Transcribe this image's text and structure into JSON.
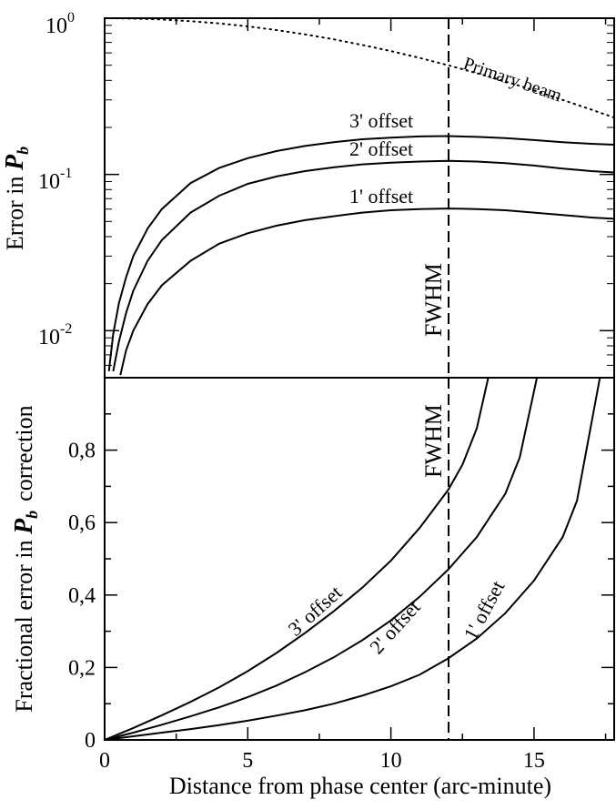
{
  "chart_data": [
    {
      "type": "line",
      "panel": "top",
      "ylabel_text": "Error in ",
      "ylabel_symbol": "P",
      "ylabel_subscript": "b",
      "yscale": "log",
      "ylim": [
        0.005,
        1
      ],
      "xlim": [
        0,
        17.8
      ],
      "ytick_labels": [
        {
          "base": "10",
          "exp": "0",
          "value": 1
        },
        {
          "base": "10",
          "exp": "-1",
          "value": 0.1
        },
        {
          "base": "10",
          "exp": "-2",
          "value": 0.01
        }
      ],
      "series": [
        {
          "name": "3' offset",
          "style": "solid",
          "x": [
            0.15,
            0.3,
            0.5,
            0.75,
            1,
            1.5,
            2,
            3,
            4,
            5,
            6,
            7,
            8,
            9,
            10,
            11,
            12,
            13,
            14,
            15,
            16,
            17,
            17.8
          ],
          "y": [
            0.0055,
            0.0095,
            0.015,
            0.022,
            0.03,
            0.045,
            0.06,
            0.088,
            0.11,
            0.127,
            0.141,
            0.152,
            0.161,
            0.168,
            0.172,
            0.175,
            0.176,
            0.174,
            0.171,
            0.166,
            0.161,
            0.157,
            0.155
          ]
        },
        {
          "name": "2' offset",
          "style": "solid",
          "x": [
            0.3,
            0.5,
            0.75,
            1,
            1.5,
            2,
            3,
            4,
            5,
            6,
            7,
            8,
            9,
            10,
            11,
            12,
            13,
            14,
            15,
            16,
            17,
            17.8
          ],
          "y": [
            0.0055,
            0.0085,
            0.013,
            0.018,
            0.028,
            0.038,
            0.057,
            0.073,
            0.087,
            0.097,
            0.105,
            0.111,
            0.116,
            0.119,
            0.121,
            0.122,
            0.121,
            0.118,
            0.114,
            0.109,
            0.105,
            0.103
          ]
        },
        {
          "name": "1' offset",
          "style": "solid",
          "x": [
            0.55,
            0.75,
            1,
            1.5,
            2,
            3,
            4,
            5,
            6,
            7,
            8,
            9,
            10,
            11,
            12,
            13,
            14,
            15,
            16,
            17,
            17.8
          ],
          "y": [
            0.0052,
            0.0075,
            0.01,
            0.0148,
            0.0195,
            0.028,
            0.036,
            0.042,
            0.047,
            0.051,
            0.054,
            0.057,
            0.059,
            0.06,
            0.0605,
            0.06,
            0.059,
            0.057,
            0.055,
            0.053,
            0.052
          ]
        },
        {
          "name": "Primary beam",
          "style": "dotted",
          "x": [
            0,
            1,
            2,
            3,
            4,
            5,
            6,
            7,
            8,
            9,
            10,
            11,
            12,
            13,
            14,
            15,
            16,
            17,
            17.8
          ],
          "y": [
            1,
            0.995,
            0.981,
            0.957,
            0.926,
            0.886,
            0.84,
            0.788,
            0.733,
            0.674,
            0.616,
            0.557,
            0.5,
            0.445,
            0.394,
            0.345,
            0.3,
            0.26,
            0.231
          ]
        }
      ],
      "annotations": [
        "3' offset",
        "2' offset",
        "1' offset",
        "Primary beam",
        "FWHM"
      ],
      "vline_x": 12
    },
    {
      "type": "line",
      "panel": "bottom",
      "ylabel_text_before": "Fractional error in ",
      "ylabel_symbol": "P",
      "ylabel_subscript": "b",
      "ylabel_text_after": "correction",
      "xlabel": "Distance from phase center (arc-minute)",
      "ylim": [
        0,
        1
      ],
      "xlim": [
        0,
        17.8
      ],
      "xticks": [
        0,
        5,
        10,
        15
      ],
      "xtick_labels": [
        "0",
        "5",
        "10",
        "15"
      ],
      "yticks": [
        0,
        0.2,
        0.4,
        0.6,
        0.8
      ],
      "ytick_labels": [
        "0",
        "0,2",
        "0,4",
        "0,6",
        "0,8"
      ],
      "series": [
        {
          "name": "3' offset",
          "style": "solid",
          "x": [
            0,
            1,
            2,
            3,
            4,
            5,
            6,
            7,
            8,
            9,
            10,
            11,
            12,
            12.5,
            13,
            13.4
          ],
          "y": [
            0,
            0.033,
            0.068,
            0.105,
            0.145,
            0.19,
            0.24,
            0.295,
            0.355,
            0.42,
            0.495,
            0.585,
            0.69,
            0.76,
            0.86,
            1.0
          ]
        },
        {
          "name": "2' offset",
          "style": "solid",
          "x": [
            0,
            1,
            2,
            3,
            4,
            5,
            6,
            7,
            8,
            9,
            10,
            11,
            12,
            13,
            14,
            14.5,
            15.1
          ],
          "y": [
            0,
            0.02,
            0.042,
            0.065,
            0.09,
            0.118,
            0.15,
            0.187,
            0.228,
            0.275,
            0.33,
            0.395,
            0.47,
            0.56,
            0.68,
            0.78,
            1.0
          ]
        },
        {
          "name": "1' offset",
          "style": "solid",
          "x": [
            0,
            1,
            2,
            3,
            4,
            5,
            6,
            7,
            8,
            9,
            10,
            11,
            12,
            13,
            14,
            15,
            16,
            16.5,
            17.3
          ],
          "y": [
            0,
            0.01,
            0.02,
            0.03,
            0.041,
            0.053,
            0.067,
            0.082,
            0.1,
            0.122,
            0.148,
            0.18,
            0.225,
            0.28,
            0.35,
            0.44,
            0.56,
            0.66,
            1.0
          ]
        }
      ],
      "annotations": [
        "3' offset",
        "2' offset",
        "1' offset",
        "FWHM"
      ],
      "vline_x": 12
    }
  ]
}
